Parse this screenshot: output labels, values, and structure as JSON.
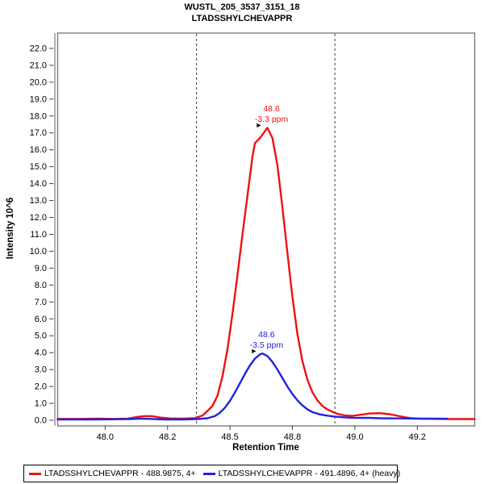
{
  "chart_data": {
    "type": "line",
    "title": "WUSTL_205_3537_3151_18",
    "subtitle": "LTADSSHYLCHEVAPPR",
    "xlabel": "Retention Time",
    "ylabel": "Intensity 10^6",
    "xlim": [
      47.81,
      49.48
    ],
    "ylim": [
      0,
      23
    ],
    "grid": false,
    "legend_position": "bottom-left",
    "frame_color": "#7a7a7a",
    "boundary_lines": [
      48.366,
      48.92
    ],
    "xticks": [
      {
        "t": 48.0,
        "label": "48.0"
      },
      {
        "t": 48.25,
        "label": "48.2"
      },
      {
        "t": 48.5,
        "label": "48.5"
      },
      {
        "t": 48.75,
        "label": "48.8"
      },
      {
        "t": 49.0,
        "label": "49.0"
      },
      {
        "t": 49.25,
        "label": "49.2"
      }
    ],
    "yticks": [
      "0.0",
      "1.0",
      "2.0",
      "3.0",
      "4.0",
      "5.0",
      "6.0",
      "7.0",
      "8.0",
      "9.0",
      "10.0",
      "11.0",
      "12.0",
      "13.0",
      "14.0",
      "15.0",
      "16.0",
      "17.0",
      "18.0",
      "19.0",
      "20.0",
      "21.0",
      "22.0"
    ],
    "series": [
      {
        "name": "LTADSSHYLCHEVAPPR - 488.9875, 4+",
        "color": "#ee1111",
        "annotation": {
          "rt_label": "48.6",
          "ppm_label": "-3.3 ppm",
          "apex_t": 48.65,
          "apex_v": 17.3
        },
        "points": [
          [
            47.81,
            0.08
          ],
          [
            47.9,
            0.08
          ],
          [
            47.97,
            0.1
          ],
          [
            48.03,
            0.08
          ],
          [
            48.09,
            0.1
          ],
          [
            48.13,
            0.2
          ],
          [
            48.16,
            0.25
          ],
          [
            48.19,
            0.24
          ],
          [
            48.22,
            0.16
          ],
          [
            48.26,
            0.11
          ],
          [
            48.31,
            0.1
          ],
          [
            48.36,
            0.13
          ],
          [
            48.39,
            0.28
          ],
          [
            48.41,
            0.55
          ],
          [
            48.43,
            0.85
          ],
          [
            48.45,
            1.45
          ],
          [
            48.47,
            2.6
          ],
          [
            48.49,
            4.2
          ],
          [
            48.51,
            6.3
          ],
          [
            48.53,
            8.6
          ],
          [
            48.55,
            11.0
          ],
          [
            48.57,
            13.3
          ],
          [
            48.59,
            15.6
          ],
          [
            48.6,
            16.4
          ],
          [
            48.62,
            16.7
          ],
          [
            48.63,
            16.9
          ],
          [
            48.65,
            17.3
          ],
          [
            48.67,
            16.7
          ],
          [
            48.69,
            15.1
          ],
          [
            48.71,
            12.6
          ],
          [
            48.73,
            9.9
          ],
          [
            48.75,
            7.3
          ],
          [
            48.77,
            5.1
          ],
          [
            48.79,
            3.5
          ],
          [
            48.81,
            2.4
          ],
          [
            48.83,
            1.65
          ],
          [
            48.85,
            1.18
          ],
          [
            48.87,
            0.85
          ],
          [
            48.89,
            0.64
          ],
          [
            48.91,
            0.5
          ],
          [
            48.93,
            0.38
          ],
          [
            48.96,
            0.28
          ],
          [
            48.99,
            0.26
          ],
          [
            49.02,
            0.32
          ],
          [
            49.06,
            0.4
          ],
          [
            49.1,
            0.42
          ],
          [
            49.14,
            0.36
          ],
          [
            49.18,
            0.24
          ],
          [
            49.22,
            0.13
          ],
          [
            49.26,
            0.09
          ],
          [
            49.32,
            0.08
          ],
          [
            49.4,
            0.07
          ],
          [
            49.48,
            0.07
          ]
        ]
      },
      {
        "name": "LTADSSHYLCHEVAPPR - 491.4896, 4+ (heavy)",
        "color": "#2222e0",
        "annotation": {
          "rt_label": "48.6",
          "ppm_label": "-3.5 ppm",
          "apex_t": 48.63,
          "apex_v": 3.95
        },
        "points": [
          [
            47.81,
            0.05
          ],
          [
            47.95,
            0.05
          ],
          [
            48.05,
            0.06
          ],
          [
            48.1,
            0.07
          ],
          [
            48.14,
            0.1
          ],
          [
            48.18,
            0.08
          ],
          [
            48.24,
            0.05
          ],
          [
            48.31,
            0.05
          ],
          [
            48.37,
            0.07
          ],
          [
            48.41,
            0.12
          ],
          [
            48.44,
            0.25
          ],
          [
            48.46,
            0.45
          ],
          [
            48.48,
            0.75
          ],
          [
            48.5,
            1.15
          ],
          [
            48.52,
            1.65
          ],
          [
            48.54,
            2.2
          ],
          [
            48.56,
            2.75
          ],
          [
            48.58,
            3.25
          ],
          [
            48.6,
            3.65
          ],
          [
            48.62,
            3.9
          ],
          [
            48.63,
            3.95
          ],
          [
            48.65,
            3.8
          ],
          [
            48.67,
            3.45
          ],
          [
            48.69,
            3.0
          ],
          [
            48.71,
            2.5
          ],
          [
            48.73,
            2.0
          ],
          [
            48.75,
            1.55
          ],
          [
            48.77,
            1.18
          ],
          [
            48.79,
            0.88
          ],
          [
            48.81,
            0.65
          ],
          [
            48.83,
            0.48
          ],
          [
            48.86,
            0.35
          ],
          [
            48.89,
            0.27
          ],
          [
            48.92,
            0.22
          ],
          [
            48.96,
            0.17
          ],
          [
            49.0,
            0.14
          ],
          [
            49.05,
            0.15
          ],
          [
            49.1,
            0.12
          ],
          [
            49.16,
            0.11
          ],
          [
            49.24,
            0.1
          ],
          [
            49.3,
            0.1
          ],
          [
            49.37,
            0.09
          ]
        ]
      }
    ]
  },
  "legend": {
    "items": [
      {
        "label": "LTADSSHYLCHEVAPPR - 488.9875, 4+"
      },
      {
        "label": "LTADSSHYLCHEVAPPR - 491.4896, 4+ (heavy)"
      }
    ]
  }
}
